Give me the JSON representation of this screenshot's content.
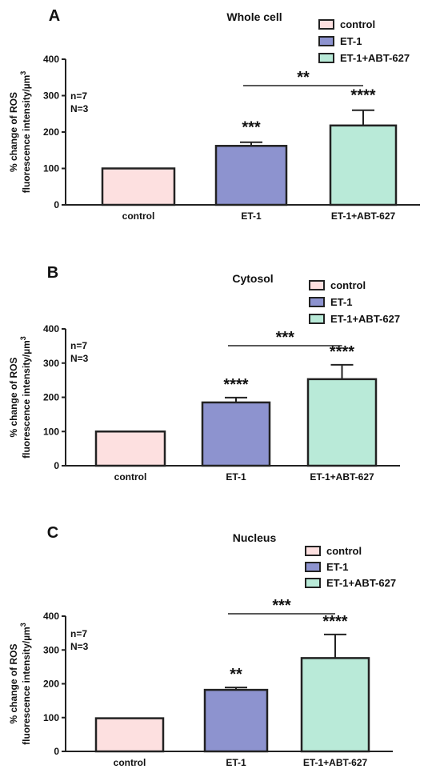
{
  "colors": {
    "control": "#fde0e0",
    "et1": "#8d93cf",
    "et1abt": "#b9ead8",
    "stroke": "#222222"
  },
  "chart_data": [
    {
      "type": "bar",
      "panel": "A",
      "title": "Whole cell",
      "ylabel_line1": "% change of ROS",
      "ylabel_line2": "fluorescence intensity/µm",
      "ylabel_sup": "3",
      "ylim": [
        0,
        400
      ],
      "yticks": [
        "0",
        "100",
        "200",
        "300",
        "400"
      ],
      "categories": [
        "control",
        "ET-1",
        "ET-1+ABT-627"
      ],
      "values": [
        100,
        162,
        218
      ],
      "errors": [
        0,
        10,
        42
      ],
      "significance": [
        "",
        "***",
        "****"
      ],
      "bracket": "**",
      "notes": [
        "n=7",
        "N=3"
      ],
      "legend": [
        "control",
        "ET-1",
        "ET-1+ABT-627"
      ]
    },
    {
      "type": "bar",
      "panel": "B",
      "title": "Cytosol",
      "ylabel_line1": "% change of ROS",
      "ylabel_line2": "fluorescence intensity/µm",
      "ylabel_sup": "3",
      "ylim": [
        0,
        400
      ],
      "yticks": [
        "0",
        "100",
        "200",
        "300",
        "400"
      ],
      "categories": [
        "control",
        "ET-1",
        "ET-1+ABT-627"
      ],
      "values": [
        100,
        185,
        253
      ],
      "errors": [
        0,
        14,
        42
      ],
      "significance": [
        "",
        "****",
        "****"
      ],
      "bracket": "***",
      "notes": [
        "n=7",
        "N=3"
      ],
      "legend": [
        "control",
        "ET-1",
        "ET-1+ABT-627"
      ]
    },
    {
      "type": "bar",
      "panel": "C",
      "title": "Nucleus",
      "ylabel_line1": "% change of ROS",
      "ylabel_line2": "fluorescence intensity/µm",
      "ylabel_sup": "3",
      "ylim": [
        0,
        400
      ],
      "yticks": [
        "0",
        "100",
        "200",
        "300",
        "400"
      ],
      "categories": [
        "control",
        "ET-1",
        "ET-1+ABT-627"
      ],
      "values": [
        98,
        182,
        276
      ],
      "errors": [
        0,
        7,
        70
      ],
      "significance": [
        "",
        "**",
        "****"
      ],
      "bracket": "***",
      "notes": [
        "n=7",
        "N=3"
      ],
      "legend": [
        "control",
        "ET-1",
        "ET-1+ABT-627"
      ]
    }
  ]
}
